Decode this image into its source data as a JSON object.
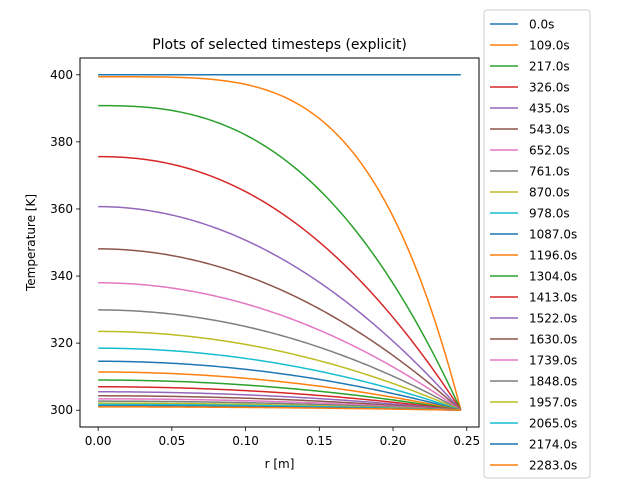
{
  "chart_data": {
    "type": "line",
    "title": "Plots of selected timesteps (explicit)",
    "xlabel": "r [m]",
    "ylabel": "Temperature [K]",
    "xlim": [
      -0.0123,
      0.2583
    ],
    "ylim": [
      295.0,
      405.0
    ],
    "xticks": [
      0.0,
      0.05,
      0.1,
      0.15,
      0.2,
      0.25
    ],
    "xtick_labels": [
      "0.00",
      "0.05",
      "0.10",
      "0.15",
      "0.20",
      "0.25"
    ],
    "yticks": [
      300,
      320,
      340,
      360,
      380,
      400
    ],
    "ytick_labels": [
      "300",
      "320",
      "340",
      "360",
      "380",
      "400"
    ],
    "grid": false,
    "legend_position": "outside-right",
    "r_max": 0.246,
    "boundary_temperature": 300,
    "series": [
      {
        "name": "0.0s",
        "center": 400.0,
        "color": "#1f77b4"
      },
      {
        "name": "109.0s",
        "center": 399.4,
        "color": "#ff7f0e"
      },
      {
        "name": "217.0s",
        "center": 390.8,
        "color": "#2ca02c"
      },
      {
        "name": "326.0s",
        "center": 375.6,
        "color": "#d62728"
      },
      {
        "name": "435.0s",
        "center": 360.7,
        "color": "#9467bd"
      },
      {
        "name": "543.0s",
        "center": 348.1,
        "color": "#8c564b"
      },
      {
        "name": "652.0s",
        "center": 338.0,
        "color": "#e377c2"
      },
      {
        "name": "761.0s",
        "center": 329.9,
        "color": "#7f7f7f"
      },
      {
        "name": "870.0s",
        "center": 323.5,
        "color": "#bcbd22"
      },
      {
        "name": "978.0s",
        "center": 318.5,
        "color": "#17becf"
      },
      {
        "name": "1087.0s",
        "center": 314.6,
        "color": "#1f77b4"
      },
      {
        "name": "1196.0s",
        "center": 311.4,
        "color": "#ff7f0e"
      },
      {
        "name": "1304.0s",
        "center": 309.0,
        "color": "#2ca02c"
      },
      {
        "name": "1413.0s",
        "center": 307.0,
        "color": "#d62728"
      },
      {
        "name": "1522.0s",
        "center": 305.5,
        "color": "#9467bd"
      },
      {
        "name": "1630.0s",
        "center": 304.3,
        "color": "#8c564b"
      },
      {
        "name": "1739.0s",
        "center": 303.4,
        "color": "#e377c2"
      },
      {
        "name": "1848.0s",
        "center": 302.7,
        "color": "#7f7f7f"
      },
      {
        "name": "1957.0s",
        "center": 302.1,
        "color": "#bcbd22"
      },
      {
        "name": "2065.0s",
        "center": 301.7,
        "color": "#17becf"
      },
      {
        "name": "2174.0s",
        "center": 301.3,
        "color": "#1f77b4"
      },
      {
        "name": "2283.0s",
        "center": 301.0,
        "color": "#ff7f0e"
      }
    ]
  }
}
